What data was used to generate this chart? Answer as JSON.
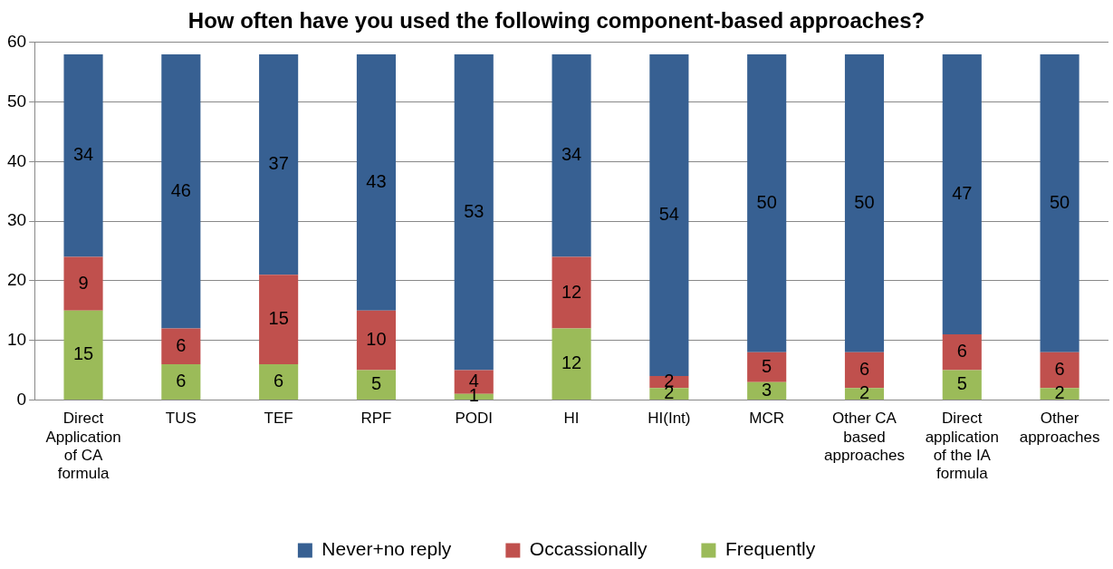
{
  "chart_data": {
    "type": "bar",
    "title": "How often have you used the following component-based approaches?",
    "categories": [
      "Direct Application of CA formula",
      "TUS",
      "TEF",
      "RPF",
      "PODI",
      "HI",
      "HI(Int)",
      "MCR",
      "Other CA based approaches",
      "Direct application of the IA formula",
      "Other approaches"
    ],
    "series": [
      {
        "name": "Frequently",
        "color": "#9bbb59",
        "values": [
          15,
          6,
          6,
          5,
          1,
          12,
          2,
          3,
          2,
          5,
          2
        ]
      },
      {
        "name": "Occassionally",
        "color": "#c0504d",
        "values": [
          9,
          6,
          15,
          10,
          4,
          12,
          2,
          5,
          6,
          6,
          6
        ]
      },
      {
        "name": "Never+no reply",
        "color": "#376092",
        "values": [
          34,
          46,
          37,
          43,
          53,
          34,
          54,
          50,
          50,
          47,
          50
        ]
      }
    ],
    "stacked": true,
    "ylim": [
      0,
      60
    ],
    "yticks": [
      0,
      10,
      20,
      30,
      40,
      50,
      60
    ],
    "grid": "y",
    "legend": "bottom",
    "data_labels": true
  }
}
